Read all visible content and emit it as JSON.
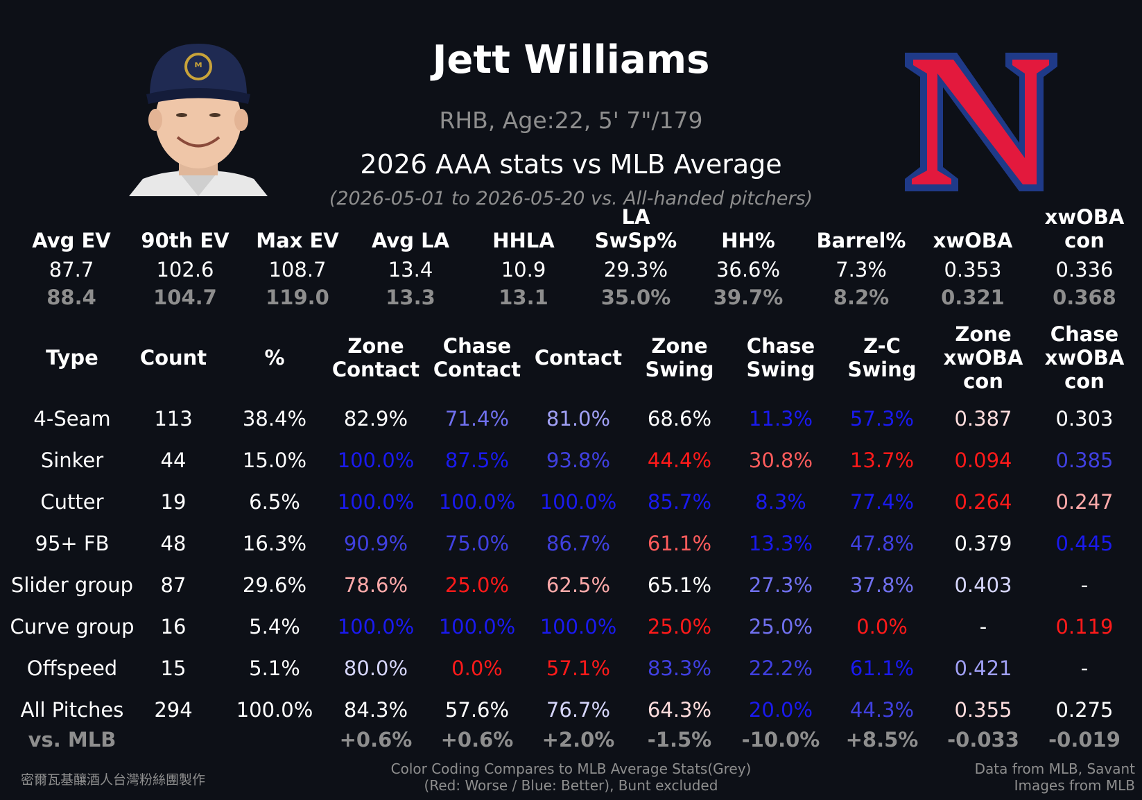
{
  "player": {
    "name": "Jett Williams",
    "bio": "RHB, Age:22, 5' 7\"/179",
    "heading": "2026 AAA stats vs MLB Average",
    "date_range": "(2026-05-01 to 2026-05-20 vs. All-handed pitchers)"
  },
  "colors": {
    "background": "#0d1017",
    "white": "#ffffff",
    "grey": "#8e8e8e",
    "red_strong": "#ff1a1a",
    "red_mid": "#ff5c5c",
    "red_light": "#ffaaaa",
    "red_faint": "#ffdddd",
    "blue_strong": "#1a1aee",
    "blue_mid": "#4040e0",
    "blue_soft": "#7070ee",
    "blue_light": "#a0a0f5",
    "blue_faint": "#d6d6fb"
  },
  "summary": {
    "headers": [
      [
        "",
        "Avg EV"
      ],
      [
        "",
        "90th EV"
      ],
      [
        "",
        "Max EV"
      ],
      [
        "",
        "Avg LA"
      ],
      [
        "",
        "HHLA"
      ],
      [
        "",
        "LA SwSp%"
      ],
      [
        "",
        "HH%"
      ],
      [
        "",
        "Barrel%"
      ],
      [
        "",
        "xwOBA"
      ],
      [
        "xwOBA",
        "con"
      ]
    ],
    "player_values": [
      "87.7",
      "102.6",
      "108.7",
      "13.4",
      "10.9",
      "29.3%",
      "36.6%",
      "7.3%",
      "0.353",
      "0.336"
    ],
    "mlb_values": [
      "88.4",
      "104.7",
      "119.0",
      "13.3",
      "13.1",
      "35.0%",
      "39.7%",
      "8.2%",
      "0.321",
      "0.368"
    ]
  },
  "table": {
    "headers": [
      [
        "Type"
      ],
      [
        "Count"
      ],
      [
        "%"
      ],
      [
        "Zone",
        "Contact"
      ],
      [
        "Chase",
        "Contact"
      ],
      [
        "Contact"
      ],
      [
        "Zone",
        "Swing"
      ],
      [
        "Chase",
        "Swing"
      ],
      [
        "Z-C",
        "Swing"
      ],
      [
        "Zone",
        "xwOBA",
        "con"
      ],
      [
        "Chase",
        "xwOBA",
        "con"
      ]
    ],
    "rows": [
      {
        "cells": [
          "4-Seam",
          "113",
          "38.4%",
          "82.9%",
          "71.4%",
          "81.0%",
          "68.6%",
          "11.3%",
          "57.3%",
          "0.387",
          "0.303"
        ],
        "colors": [
          "white",
          "white",
          "white",
          "white",
          "blue_soft",
          "blue_light",
          "white",
          "blue_strong",
          "blue_strong",
          "red_faint",
          "white"
        ]
      },
      {
        "cells": [
          "Sinker",
          "44",
          "15.0%",
          "100.0%",
          "87.5%",
          "93.8%",
          "44.4%",
          "30.8%",
          "13.7%",
          "0.094",
          "0.385"
        ],
        "colors": [
          "white",
          "white",
          "white",
          "blue_strong",
          "blue_strong",
          "blue_mid",
          "red_strong",
          "red_mid",
          "red_strong",
          "red_strong",
          "blue_mid"
        ]
      },
      {
        "cells": [
          "Cutter",
          "19",
          "6.5%",
          "100.0%",
          "100.0%",
          "100.0%",
          "85.7%",
          "8.3%",
          "77.4%",
          "0.264",
          "0.247"
        ],
        "colors": [
          "white",
          "white",
          "white",
          "blue_strong",
          "blue_strong",
          "blue_strong",
          "blue_strong",
          "blue_strong",
          "blue_strong",
          "red_strong",
          "red_light"
        ]
      },
      {
        "cells": [
          "95+ FB",
          "48",
          "16.3%",
          "90.9%",
          "75.0%",
          "86.7%",
          "61.1%",
          "13.3%",
          "47.8%",
          "0.379",
          "0.445"
        ],
        "colors": [
          "white",
          "white",
          "white",
          "blue_mid",
          "blue_mid",
          "blue_mid",
          "red_mid",
          "blue_strong",
          "blue_mid",
          "white",
          "blue_strong"
        ]
      },
      {
        "cells": [
          "Slider group",
          "87",
          "29.6%",
          "78.6%",
          "25.0%",
          "62.5%",
          "65.1%",
          "27.3%",
          "37.8%",
          "0.403",
          "-"
        ],
        "colors": [
          "white",
          "white",
          "white",
          "red_light",
          "red_strong",
          "red_light",
          "white",
          "blue_soft",
          "blue_soft",
          "blue_faint",
          "white"
        ]
      },
      {
        "cells": [
          "Curve group",
          "16",
          "5.4%",
          "100.0%",
          "100.0%",
          "100.0%",
          "25.0%",
          "25.0%",
          "0.0%",
          "-",
          "0.119"
        ],
        "colors": [
          "white",
          "white",
          "white",
          "blue_strong",
          "blue_strong",
          "blue_strong",
          "red_strong",
          "blue_soft",
          "red_strong",
          "white",
          "red_strong"
        ]
      },
      {
        "cells": [
          "Offspeed",
          "15",
          "5.1%",
          "80.0%",
          "0.0%",
          "57.1%",
          "83.3%",
          "22.2%",
          "61.1%",
          "0.421",
          "-"
        ],
        "colors": [
          "white",
          "white",
          "white",
          "blue_faint",
          "red_strong",
          "red_strong",
          "blue_mid",
          "blue_mid",
          "blue_strong",
          "blue_light",
          "white"
        ]
      },
      {
        "cells": [
          "All Pitches",
          "294",
          "100.0%",
          "84.3%",
          "57.6%",
          "76.7%",
          "64.3%",
          "20.0%",
          "44.3%",
          "0.355",
          "0.275"
        ],
        "colors": [
          "white",
          "white",
          "white",
          "white",
          "white",
          "blue_faint",
          "red_faint",
          "blue_strong",
          "blue_mid",
          "red_faint",
          "white"
        ]
      }
    ],
    "mlb_row": [
      "vs. MLB",
      "",
      "",
      "+0.6%",
      "+0.6%",
      "+2.0%",
      "-1.5%",
      "-10.0%",
      "+8.5%",
      "-0.033",
      "-0.019"
    ]
  },
  "footer": {
    "credit": "密爾瓦基釀酒人台灣粉絲團製作",
    "note_line1": "Color Coding Compares to MLB Average Stats(Grey)",
    "note_line2": "(Red: Worse / Blue: Better), Bunt excluded",
    "source_line1": "Data from MLB, Savant",
    "source_line2": "Images from MLB"
  }
}
